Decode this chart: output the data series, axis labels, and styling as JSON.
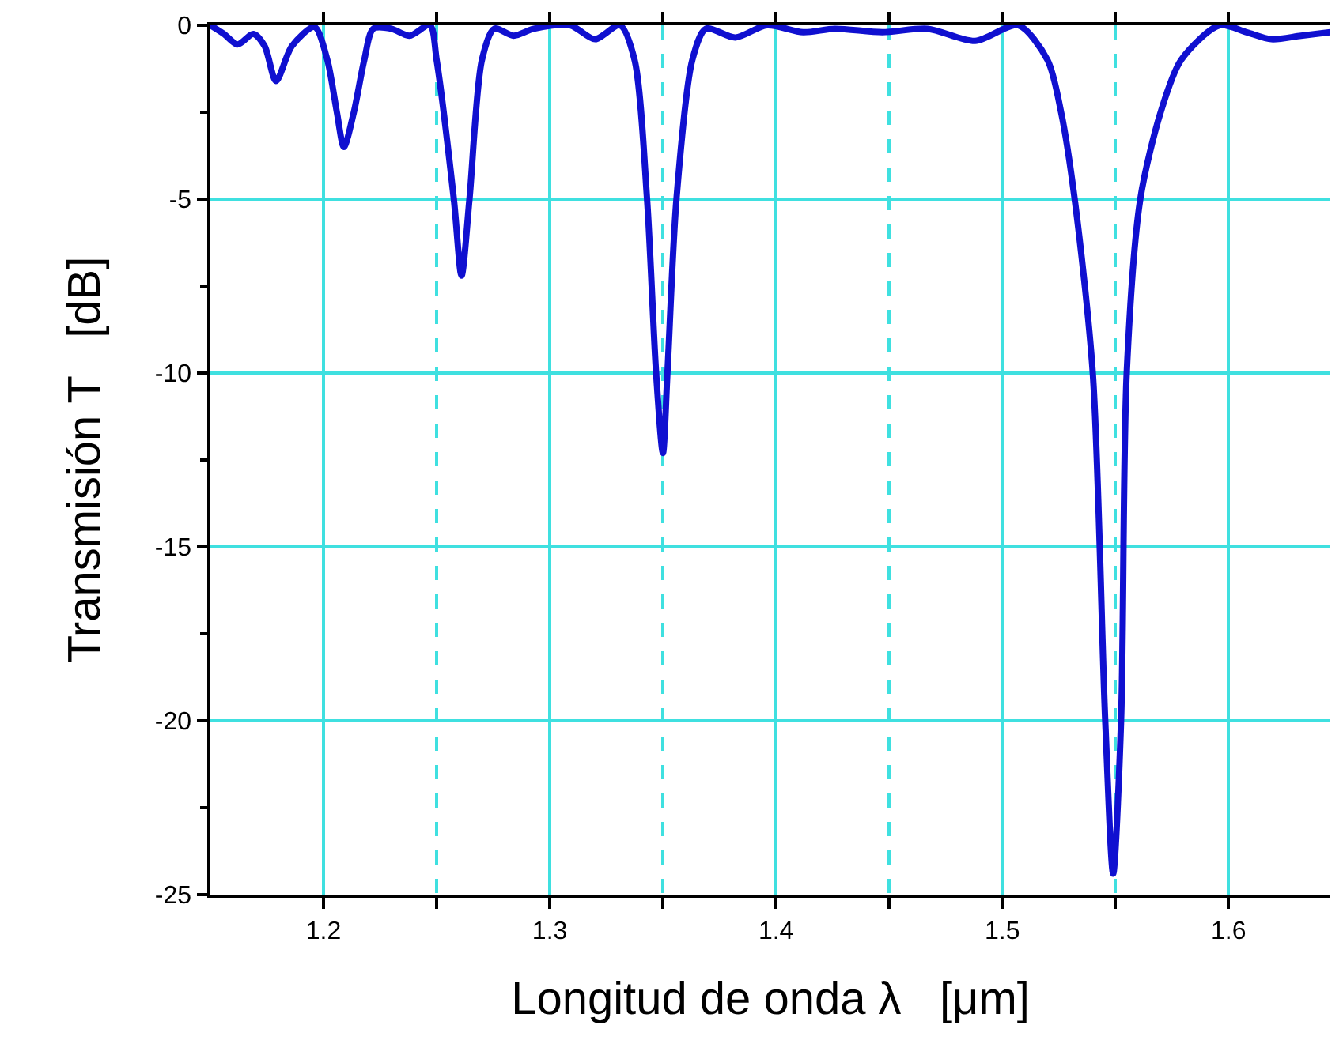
{
  "chart_data": {
    "type": "line",
    "xlabel": "Longitud de onda λ   [μm]",
    "ylabel": "Transmisión T   [dB]",
    "xlim": [
      1.15,
      1.645
    ],
    "ylim": [
      -25,
      0
    ],
    "xticks": [
      1.2,
      {
        "value": 1.25,
        "label": null
      },
      1.3,
      {
        "value": 1.35,
        "label": null
      },
      1.4,
      {
        "value": 1.45,
        "label": null
      },
      1.5,
      {
        "value": 1.55,
        "label": null
      },
      1.6
    ],
    "yticks": [
      -25,
      {
        "value": -22.5,
        "label": null
      },
      -20,
      {
        "value": -17.5,
        "label": null
      },
      -15,
      {
        "value": -12.5,
        "label": null
      },
      -10,
      {
        "value": -7.5,
        "label": null
      },
      -5,
      {
        "value": -2.5,
        "label": null
      },
      0
    ],
    "grid": true,
    "marker": "none",
    "line_style": "solid",
    "series": [
      {
        "color": "#1010d0",
        "x": [
          1.15,
          1.156,
          1.162,
          1.169,
          1.174,
          1.179,
          1.186,
          1.196,
          1.2017,
          1.2059,
          1.209,
          1.2134,
          1.218,
          1.222,
          1.23,
          1.238,
          1.247,
          1.25,
          1.2576,
          1.261,
          1.2645,
          1.27,
          1.2755,
          1.284,
          1.293,
          1.309,
          1.32,
          1.331,
          1.3375,
          1.343,
          1.347,
          1.35,
          1.352,
          1.356,
          1.363,
          1.369,
          1.382,
          1.396,
          1.412,
          1.426,
          1.447,
          1.467,
          1.488,
          1.507,
          1.52,
          1.526,
          1.532,
          1.54,
          1.5455,
          1.549,
          1.5525,
          1.555,
          1.561,
          1.57,
          1.579,
          1.596,
          1.608,
          1.619,
          1.632,
          1.645
        ],
        "values": [
          0,
          -0.25,
          -0.55,
          -0.25,
          -0.6,
          -1.6,
          -0.6,
          -0.05,
          -1,
          -2.5,
          -3.5,
          -2.5,
          -1,
          -0.1,
          -0.1,
          -0.3,
          0,
          -1,
          -5,
          -7.2,
          -5,
          -1,
          -0.1,
          -0.3,
          -0.1,
          0,
          -0.4,
          0,
          -1,
          -5,
          -10,
          -12.3,
          -10,
          -5,
          -1,
          -0.1,
          -0.35,
          0,
          -0.2,
          -0.1,
          -0.2,
          -0.1,
          -0.45,
          0,
          -1,
          -2.5,
          -5,
          -10,
          -20,
          -24.4,
          -20,
          -10,
          -5,
          -2.5,
          -1,
          0,
          -0.2,
          -0.4,
          -0.3,
          -0.2
        ]
      }
    ]
  }
}
